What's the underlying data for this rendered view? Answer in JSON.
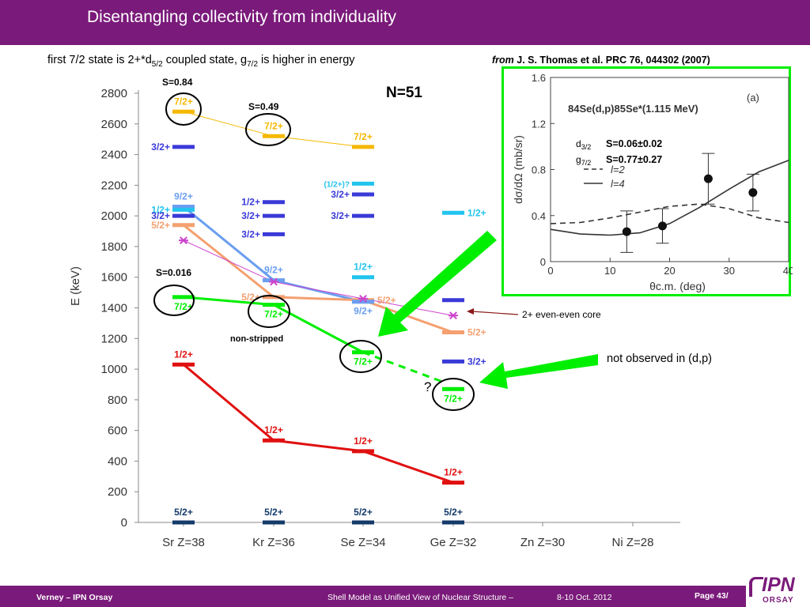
{
  "header": {
    "title": "Disentangling collectivity from individuality"
  },
  "subtitle": {
    "part1": "first 7/2 state is 2+*d",
    "sub1": "5/2",
    "part2": " coupled state, g",
    "sub2": "7/2",
    "part3": " is higher in energy"
  },
  "reference": {
    "from": "from",
    "text": " J. S. Thomas et al. PRC 76, 044302 (2007)"
  },
  "footer": {
    "author": "Verney – IPN Orsay",
    "talk": "Shell Model as Unified View of Nuclear Structure –",
    "dates": "8-10 Oct. 2012",
    "page": "Page 43/",
    "logo_main": "IPN",
    "logo_sub": "ORSAY"
  },
  "annotations": {
    "not_observed": "not observed in (d,p)",
    "question": "?",
    "non_stripped": "non-stripped",
    "core_label": "2+ even-even core",
    "s_084": "S=0.84",
    "s_049": "S=0.49",
    "s_0016": "S=0.016",
    "d32_label": "d",
    "d32_sub": "3/2",
    "g72_label": "g",
    "g72_sub": "7/2",
    "s_d32": "S=0.06±0.02",
    "s_g72": "S=0.77±0.27"
  },
  "colors": {
    "purple": "#7a1a7a",
    "green": "#00ee00",
    "red": "#e01010",
    "orange": "#f4a070",
    "yellow": "#f5b800",
    "blue": "#3a3ad8",
    "cyan": "#22c4ee",
    "lightblue": "#6a9ef0",
    "magenta": "#cc44cc",
    "navy": "#143a6a"
  },
  "chart_data": [
    {
      "type": "level-scheme",
      "title": "N=51",
      "ylabel": "E (keV)",
      "ylim": [
        0,
        2800
      ],
      "yticks": [
        0,
        200,
        400,
        600,
        800,
        1000,
        1200,
        1400,
        1600,
        1800,
        2000,
        2200,
        2400,
        2600,
        2800
      ],
      "categories": [
        "Sr Z=38",
        "Kr Z=36",
        "Se Z=34",
        "Ge Z=32",
        "Zn Z=30",
        "Ni Z=28"
      ],
      "levels": [
        {
          "col": 0,
          "e": 2680,
          "color": "yellow",
          "label": "7/2+",
          "side": "above"
        },
        {
          "col": 0,
          "e": 2450,
          "color": "blue",
          "label": "3/2+",
          "side": "left"
        },
        {
          "col": 0,
          "e": 2060,
          "color": "lightblue",
          "label": "9/2+",
          "side": "above"
        },
        {
          "col": 0,
          "e": 2040,
          "color": "cyan",
          "label": "1/2+",
          "side": "left"
        },
        {
          "col": 0,
          "e": 2000,
          "color": "blue",
          "label": "3/2+",
          "side": "left"
        },
        {
          "col": 0,
          "e": 1940,
          "color": "orange",
          "label": "5/2+",
          "side": "left"
        },
        {
          "col": 0,
          "e": 1470,
          "color": "green",
          "label": "7/2+",
          "side": "below"
        },
        {
          "col": 0,
          "e": 1030,
          "color": "red",
          "label": "1/2+",
          "side": "above"
        },
        {
          "col": 0,
          "e": 0,
          "color": "navy",
          "label": "5/2+",
          "side": "above"
        },
        {
          "col": 1,
          "e": 2520,
          "color": "yellow",
          "label": "7/2+",
          "side": "above"
        },
        {
          "col": 1,
          "e": 2090,
          "color": "blue",
          "label": "1/2+",
          "side": "left"
        },
        {
          "col": 1,
          "e": 2000,
          "color": "blue",
          "label": "3/2+",
          "side": "left"
        },
        {
          "col": 1,
          "e": 1880,
          "color": "blue",
          "label": "3/2+",
          "side": "left"
        },
        {
          "col": 1,
          "e": 1580,
          "color": "lightblue",
          "label": "9/2+",
          "side": "above"
        },
        {
          "col": 1,
          "e": 1470,
          "color": "orange",
          "label": "5/2+",
          "side": "left"
        },
        {
          "col": 1,
          "e": 1420,
          "color": "green",
          "label": "7/2+",
          "side": "below"
        },
        {
          "col": 1,
          "e": 535,
          "color": "red",
          "label": "1/2+",
          "side": "above"
        },
        {
          "col": 1,
          "e": 0,
          "color": "navy",
          "label": "5/2+",
          "side": "above"
        },
        {
          "col": 2,
          "e": 2450,
          "color": "yellow",
          "label": "7/2+",
          "side": "above"
        },
        {
          "col": 2,
          "e": 2210,
          "color": "cyan",
          "label": "(1/2+)?",
          "side": "left"
        },
        {
          "col": 2,
          "e": 2140,
          "color": "blue",
          "label": "3/2+",
          "side": "left"
        },
        {
          "col": 2,
          "e": 2000,
          "color": "blue",
          "label": "3/2+",
          "side": "left"
        },
        {
          "col": 2,
          "e": 1600,
          "color": "cyan",
          "label": "1/2+",
          "side": "above"
        },
        {
          "col": 2,
          "e": 1450,
          "color": "orange",
          "label": "5/2+",
          "side": "right"
        },
        {
          "col": 2,
          "e": 1440,
          "color": "lightblue",
          "label": "9/2+",
          "side": "below"
        },
        {
          "col": 2,
          "e": 1110,
          "color": "green",
          "label": "7/2+",
          "side": "below"
        },
        {
          "col": 2,
          "e": 465,
          "color": "red",
          "label": "1/2+",
          "side": "above"
        },
        {
          "col": 2,
          "e": 0,
          "color": "navy",
          "label": "5/2+",
          "side": "above"
        },
        {
          "col": 3,
          "e": 2020,
          "color": "cyan",
          "label": "1/2+",
          "side": "right"
        },
        {
          "col": 3,
          "e": 1450,
          "color": "blue",
          "label": "",
          "side": "none"
        },
        {
          "col": 3,
          "e": 1240,
          "color": "orange",
          "label": "5/2+",
          "side": "right"
        },
        {
          "col": 3,
          "e": 1050,
          "color": "blue",
          "label": "3/2+",
          "side": "right"
        },
        {
          "col": 3,
          "e": 870,
          "color": "green",
          "label": "7/2+",
          "side": "below"
        },
        {
          "col": 3,
          "e": 260,
          "color": "red",
          "label": "1/2+",
          "side": "above"
        },
        {
          "col": 3,
          "e": 0,
          "color": "navy",
          "label": "5/2+",
          "side": "above"
        }
      ],
      "series": [
        {
          "color": "yellow",
          "points": [
            [
              0,
              2680
            ],
            [
              1,
              2520
            ],
            [
              2,
              2450
            ]
          ]
        },
        {
          "color": "lightblue",
          "points": [
            [
              0,
              2060
            ],
            [
              1,
              1580
            ],
            [
              2,
              1440
            ]
          ]
        },
        {
          "color": "orange",
          "points": [
            [
              0,
              1940
            ],
            [
              1,
              1470
            ],
            [
              2,
              1450
            ],
            [
              3,
              1240
            ]
          ]
        },
        {
          "color": "green",
          "points": [
            [
              0,
              1470
            ],
            [
              1,
              1420
            ],
            [
              2,
              1110
            ]
          ]
        },
        {
          "color": "red",
          "points": [
            [
              0,
              1030
            ],
            [
              1,
              535
            ],
            [
              2,
              465
            ],
            [
              3,
              260
            ]
          ]
        },
        {
          "color": "magenta",
          "points": [
            [
              0,
              1840
            ],
            [
              1,
              1570
            ],
            [
              2,
              1460
            ],
            [
              3,
              1350
            ]
          ]
        }
      ],
      "dashed_series": {
        "color": "green",
        "points": [
          [
            2,
            1110
          ],
          [
            3,
            870
          ]
        ]
      },
      "core_markers": [
        [
          0,
          1840
        ],
        [
          1,
          1570
        ],
        [
          2,
          1460
        ],
        [
          3,
          1350
        ]
      ]
    },
    {
      "type": "scatter",
      "title": "84Se(d,p)85Se*(1.115 MeV)",
      "panel": "(a)",
      "xlabel": "θc.m. (deg)",
      "ylabel": "dσ/dΩ (mb/sr)",
      "xlim": [
        0,
        40
      ],
      "ylim": [
        0,
        1.6
      ],
      "xticks": [
        0,
        10,
        20,
        30,
        40
      ],
      "yticks": [
        0,
        0.4,
        0.8,
        1.2,
        1.6
      ],
      "legend": [
        {
          "style": "dashed",
          "name": "l=2"
        },
        {
          "style": "solid",
          "name": "l=4"
        }
      ],
      "points": [
        {
          "x": 12.8,
          "y": 0.26,
          "err": 0.18
        },
        {
          "x": 18.8,
          "y": 0.31,
          "err": 0.15
        },
        {
          "x": 26.5,
          "y": 0.72,
          "err": 0.22
        },
        {
          "x": 34,
          "y": 0.6,
          "err": 0.16
        }
      ],
      "curve_l2": [
        [
          0,
          0.33
        ],
        [
          5,
          0.34
        ],
        [
          10,
          0.38
        ],
        [
          15,
          0.43
        ],
        [
          20,
          0.48
        ],
        [
          25,
          0.5
        ],
        [
          30,
          0.46
        ],
        [
          35,
          0.38
        ],
        [
          40,
          0.34
        ]
      ],
      "curve_l4": [
        [
          0,
          0.28
        ],
        [
          5,
          0.24
        ],
        [
          10,
          0.23
        ],
        [
          15,
          0.25
        ],
        [
          20,
          0.33
        ],
        [
          25,
          0.47
        ],
        [
          30,
          0.63
        ],
        [
          35,
          0.78
        ],
        [
          40,
          0.88
        ]
      ]
    }
  ]
}
